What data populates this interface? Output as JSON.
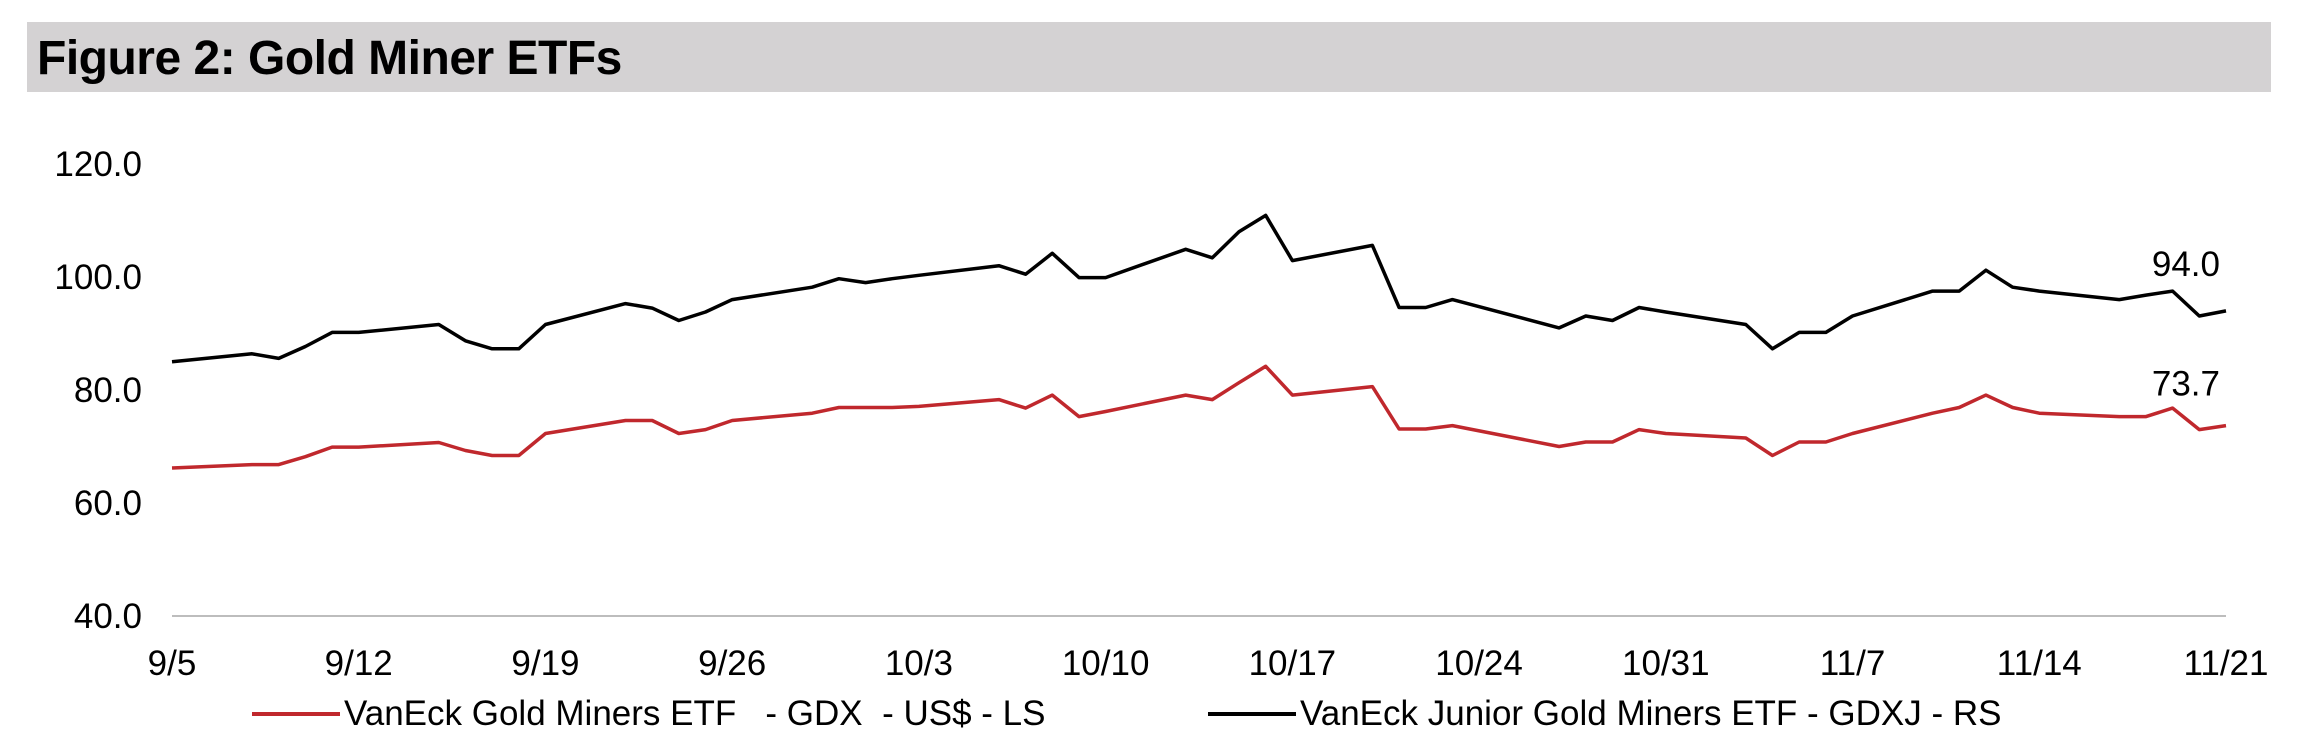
{
  "title": "Figure 2: Gold Miner ETFs",
  "chart_data": {
    "type": "line",
    "title": "Figure 2: Gold Miner ETFs",
    "xlabel": "",
    "ylabel": "",
    "ylim": [
      40,
      120
    ],
    "yticks": [
      "40.0",
      "60.0",
      "80.0",
      "100.0",
      "120.0"
    ],
    "xtick_labels": [
      "9/5",
      "9/12",
      "9/19",
      "9/26",
      "10/3",
      "10/10",
      "10/17",
      "10/24",
      "10/31",
      "11/7",
      "11/14",
      "11/21"
    ],
    "x_start": "9/5",
    "x_end": "11/21",
    "grid": false,
    "legend_placement": "bottom",
    "x": [
      "9/5",
      "9/8",
      "9/9",
      "9/10",
      "9/11",
      "9/12",
      "9/15",
      "9/16",
      "9/17",
      "9/18",
      "9/19",
      "9/22",
      "9/23",
      "9/24",
      "9/25",
      "9/26",
      "9/29",
      "9/30",
      "10/1",
      "10/2",
      "10/3",
      "10/6",
      "10/7",
      "10/8",
      "10/9",
      "10/10",
      "10/13",
      "10/14",
      "10/15",
      "10/16",
      "10/17",
      "10/20",
      "10/21",
      "10/22",
      "10/23",
      "10/27",
      "10/28",
      "10/29",
      "10/30",
      "10/31",
      "11/3",
      "11/4",
      "11/5",
      "11/6",
      "11/7",
      "11/10",
      "11/11",
      "11/12",
      "11/13",
      "11/14",
      "11/17",
      "11/18",
      "11/19",
      "11/20",
      "11/21"
    ],
    "series": [
      {
        "name": "VanEck Gold Miners ETF   - GDX  - US$ - LS",
        "color": "#c0282d",
        "axis": "left",
        "values": [
          66.2,
          66.8,
          66.8,
          68.2,
          69.9,
          69.9,
          70.7,
          69.3,
          68.4,
          68.4,
          72.3,
          74.6,
          74.6,
          72.3,
          73.0,
          74.6,
          75.9,
          76.9,
          76.9,
          76.9,
          77.1,
          78.3,
          76.8,
          79.1,
          75.3,
          76.2,
          79.1,
          78.3,
          81.3,
          84.2,
          79.1,
          80.6,
          73.1,
          73.1,
          73.7,
          70.0,
          70.8,
          70.8,
          73.0,
          72.3,
          71.5,
          68.4,
          70.8,
          70.8,
          72.3,
          75.9,
          76.9,
          79.1,
          76.9,
          75.9,
          75.3,
          75.3,
          76.8,
          73.0,
          73.7
        ]
      },
      {
        "name": "VanEck Junior Gold Miners ETF - GDXJ - RS",
        "color": "#000000",
        "axis": "right",
        "values": [
          85.0,
          86.4,
          85.6,
          87.7,
          90.2,
          90.2,
          91.6,
          88.7,
          87.3,
          87.3,
          91.6,
          95.3,
          94.5,
          92.3,
          93.8,
          96.0,
          98.2,
          99.7,
          99.0,
          99.7,
          100.3,
          102.0,
          100.5,
          104.2,
          99.9,
          99.9,
          104.9,
          103.4,
          108.0,
          110.9,
          102.9,
          105.6,
          94.6,
          94.6,
          96.0,
          91.0,
          93.1,
          92.3,
          94.6,
          93.8,
          91.6,
          87.3,
          90.2,
          90.2,
          93.1,
          97.5,
          97.5,
          101.2,
          98.2,
          97.5,
          96.0,
          96.8,
          97.5,
          93.1,
          94.0
        ]
      }
    ],
    "end_labels": [
      "94.0",
      "73.7"
    ]
  }
}
